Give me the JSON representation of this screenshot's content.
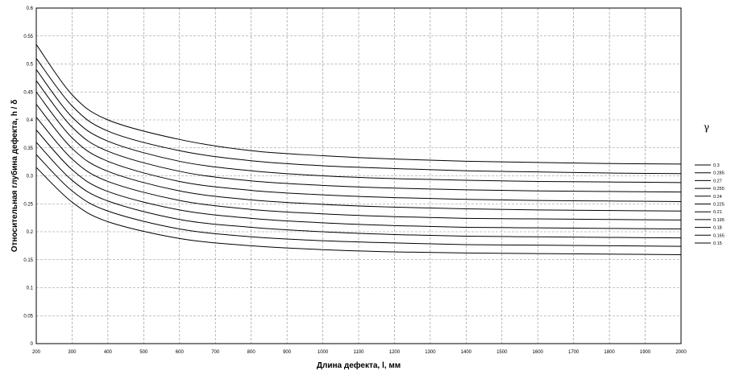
{
  "chart_data": {
    "type": "line",
    "title": "",
    "xlabel": "Длина дефекта, l, мм",
    "ylabel": "Относительная глубина дефекта, h / δ",
    "xlim": [
      200,
      2000
    ],
    "ylim": [
      0,
      0.6
    ],
    "x_ticks": [
      "200",
      "300",
      "400",
      "500",
      "600",
      "700",
      "800",
      "900",
      "1000",
      "1100",
      "1200",
      "1300",
      "1400",
      "1500",
      "1600",
      "1700",
      "1800",
      "1900",
      "2000"
    ],
    "y_ticks": [
      "0",
      "0.05",
      "0.1",
      "0.15",
      "0.2",
      "0.25",
      "0.3",
      "0.35",
      "0.4",
      "0.45",
      "0.5",
      "0.55",
      "0.6"
    ],
    "grid": true,
    "legend_title": "γ",
    "legend_position": "right",
    "x": [
      200,
      300,
      400,
      600,
      800,
      1000,
      1200,
      1400,
      1600,
      1800,
      2000
    ],
    "series": [
      {
        "name": "0.3",
        "values": [
          0.535,
          0.445,
          0.4,
          0.365,
          0.345,
          0.336,
          0.33,
          0.326,
          0.324,
          0.322,
          0.321
        ]
      },
      {
        "name": "0.285",
        "values": [
          0.51,
          0.425,
          0.38,
          0.345,
          0.327,
          0.318,
          0.313,
          0.309,
          0.307,
          0.305,
          0.304
        ]
      },
      {
        "name": "0.27",
        "values": [
          0.49,
          0.405,
          0.362,
          0.326,
          0.309,
          0.3,
          0.295,
          0.292,
          0.29,
          0.289,
          0.288
        ]
      },
      {
        "name": "0.255",
        "values": [
          0.47,
          0.387,
          0.344,
          0.308,
          0.291,
          0.283,
          0.278,
          0.275,
          0.273,
          0.272,
          0.271
        ]
      },
      {
        "name": "0.24",
        "values": [
          0.45,
          0.368,
          0.326,
          0.29,
          0.274,
          0.266,
          0.261,
          0.258,
          0.256,
          0.255,
          0.254
        ]
      },
      {
        "name": "0.225",
        "values": [
          0.428,
          0.349,
          0.308,
          0.273,
          0.257,
          0.249,
          0.244,
          0.241,
          0.239,
          0.238,
          0.237
        ]
      },
      {
        "name": "0.21",
        "values": [
          0.405,
          0.33,
          0.29,
          0.256,
          0.24,
          0.232,
          0.227,
          0.224,
          0.223,
          0.222,
          0.221
        ]
      },
      {
        "name": "0.195",
        "values": [
          0.382,
          0.311,
          0.272,
          0.239,
          0.224,
          0.216,
          0.211,
          0.208,
          0.207,
          0.206,
          0.205
        ]
      },
      {
        "name": "0.18",
        "values": [
          0.36,
          0.292,
          0.255,
          0.222,
          0.208,
          0.2,
          0.195,
          0.192,
          0.191,
          0.19,
          0.189
        ]
      },
      {
        "name": "0.165",
        "values": [
          0.338,
          0.273,
          0.237,
          0.205,
          0.191,
          0.184,
          0.18,
          0.177,
          0.176,
          0.175,
          0.174
        ]
      },
      {
        "name": "0.15",
        "values": [
          0.315,
          0.253,
          0.218,
          0.188,
          0.175,
          0.168,
          0.164,
          0.162,
          0.161,
          0.16,
          0.159
        ]
      }
    ]
  }
}
